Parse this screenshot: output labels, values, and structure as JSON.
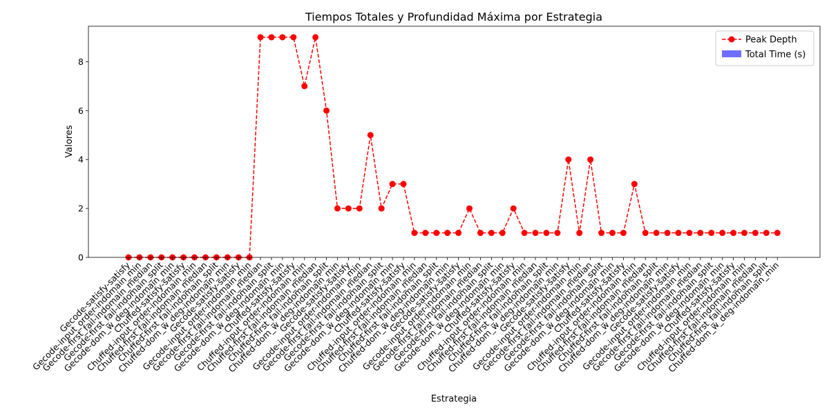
{
  "chart_data": {
    "type": "line",
    "title": "Tiempos Totales y Profundidad Máxima por Estrategia",
    "xlabel": "Estrategia",
    "ylabel": "Valores",
    "ylim": [
      0,
      9.45
    ],
    "yticks": [
      0,
      2,
      4,
      6,
      8
    ],
    "grid": false,
    "legend_position": "top-right",
    "categories": [
      "Gecode-satisfy-satisfy",
      "Gecode-input_order-indomain_min",
      "Gecode-first_fail-indomain_median",
      "Gecode-first_fail-indomain_split",
      "Gecode-dom_w_deg-indomain_min",
      "Chuffed-satisfy-satisfy",
      "Chuffed-input_order-indomain_min",
      "Chuffed-first_fail-indomain_median",
      "Chuffed-first_fail-indomain_split",
      "Chuffed-dom_w_deg-indomain_min",
      "Gecode-satisfy-satisfy",
      "Gecode-input_order-indomain_min",
      "Gecode-first_fail-indomain_median",
      "Gecode-first_fail-indomain_split",
      "Gecode-dom_w_deg-indomain_min",
      "Chuffed-satisfy-satisfy",
      "Chuffed-input_order-indomain_min",
      "Chuffed-first_fail-indomain_median",
      "Chuffed-first_fail-indomain_split",
      "Chuffed-dom_w_deg-indomain_min",
      "Gecode-satisfy-satisfy",
      "Gecode-input_order-indomain_min",
      "Gecode-first_fail-indomain_median",
      "Gecode-first_fail-indomain_split",
      "Gecode-dom_w_deg-indomain_min",
      "Chuffed-satisfy-satisfy",
      "Chuffed-input_order-indomain_min",
      "Chuffed-first_fail-indomain_median",
      "Chuffed-first_fail-indomain_split",
      "Chuffed-dom_w_deg-indomain_min",
      "Gecode-satisfy-satisfy",
      "Gecode-input_order-indomain_min",
      "Gecode-first_fail-indomain_median",
      "Gecode-first_fail-indomain_split",
      "Gecode-dom_w_deg-indomain_min",
      "Chuffed-satisfy-satisfy",
      "Chuffed-input_order-indomain_min",
      "Chuffed-first_fail-indomain_median",
      "Chuffed-first_fail-indomain_split",
      "Chuffed-dom_w_deg-indomain_min",
      "Gecode-satisfy-satisfy",
      "Gecode-input_order-indomain_min",
      "Gecode-first_fail-indomain_median",
      "Gecode-first_fail-indomain_split",
      "Gecode-dom_w_deg-indomain_min",
      "Chuffed-satisfy-satisfy",
      "Chuffed-input_order-indomain_min",
      "Chuffed-first_fail-indomain_median",
      "Chuffed-first_fail-indomain_split",
      "Chuffed-dom_w_deg-indomain_min",
      "Gecode-satisfy-satisfy",
      "Gecode-input_order-indomain_min",
      "Gecode-first_fail-indomain_median",
      "Gecode-first_fail-indomain_split",
      "Gecode-dom_w_deg-indomain_min",
      "Chuffed-satisfy-satisfy",
      "Chuffed-input_order-indomain_min",
      "Chuffed-first_fail-indomain_median",
      "Chuffed-first_fail-indomain_split",
      "Chuffed-dom_w_deg-indomain_min"
    ],
    "series": [
      {
        "name": "Peak Depth",
        "type": "line",
        "color": "#ff0000",
        "line_style": "dashed",
        "marker": "circle",
        "values": [
          0,
          0,
          0,
          0,
          0,
          0,
          0,
          0,
          0,
          0,
          0,
          0,
          9,
          9,
          9,
          9,
          7,
          9,
          6,
          2,
          2,
          2,
          5,
          2,
          3,
          3,
          1,
          1,
          1,
          1,
          1,
          2,
          1,
          1,
          1,
          2,
          1,
          1,
          1,
          1,
          4,
          1,
          4,
          1,
          1,
          1,
          3,
          1,
          1,
          1,
          1,
          1,
          1,
          1,
          1,
          1,
          1,
          1,
          1,
          1
        ]
      },
      {
        "name": "Total Time (s)",
        "type": "bar",
        "color": "#6666ff",
        "values": [
          0,
          0,
          0,
          0,
          0,
          0,
          0,
          0,
          0,
          0,
          0,
          0,
          0,
          0,
          0,
          0,
          0,
          0,
          0,
          0,
          0,
          0,
          0,
          0,
          0,
          0,
          0,
          0,
          0,
          0,
          0,
          0,
          0,
          0,
          0,
          0,
          0,
          0,
          0,
          0,
          0,
          0,
          0,
          0,
          0,
          0,
          0,
          0,
          0,
          0,
          0,
          0,
          0,
          0,
          0,
          0,
          0,
          0,
          0,
          0
        ]
      }
    ]
  }
}
